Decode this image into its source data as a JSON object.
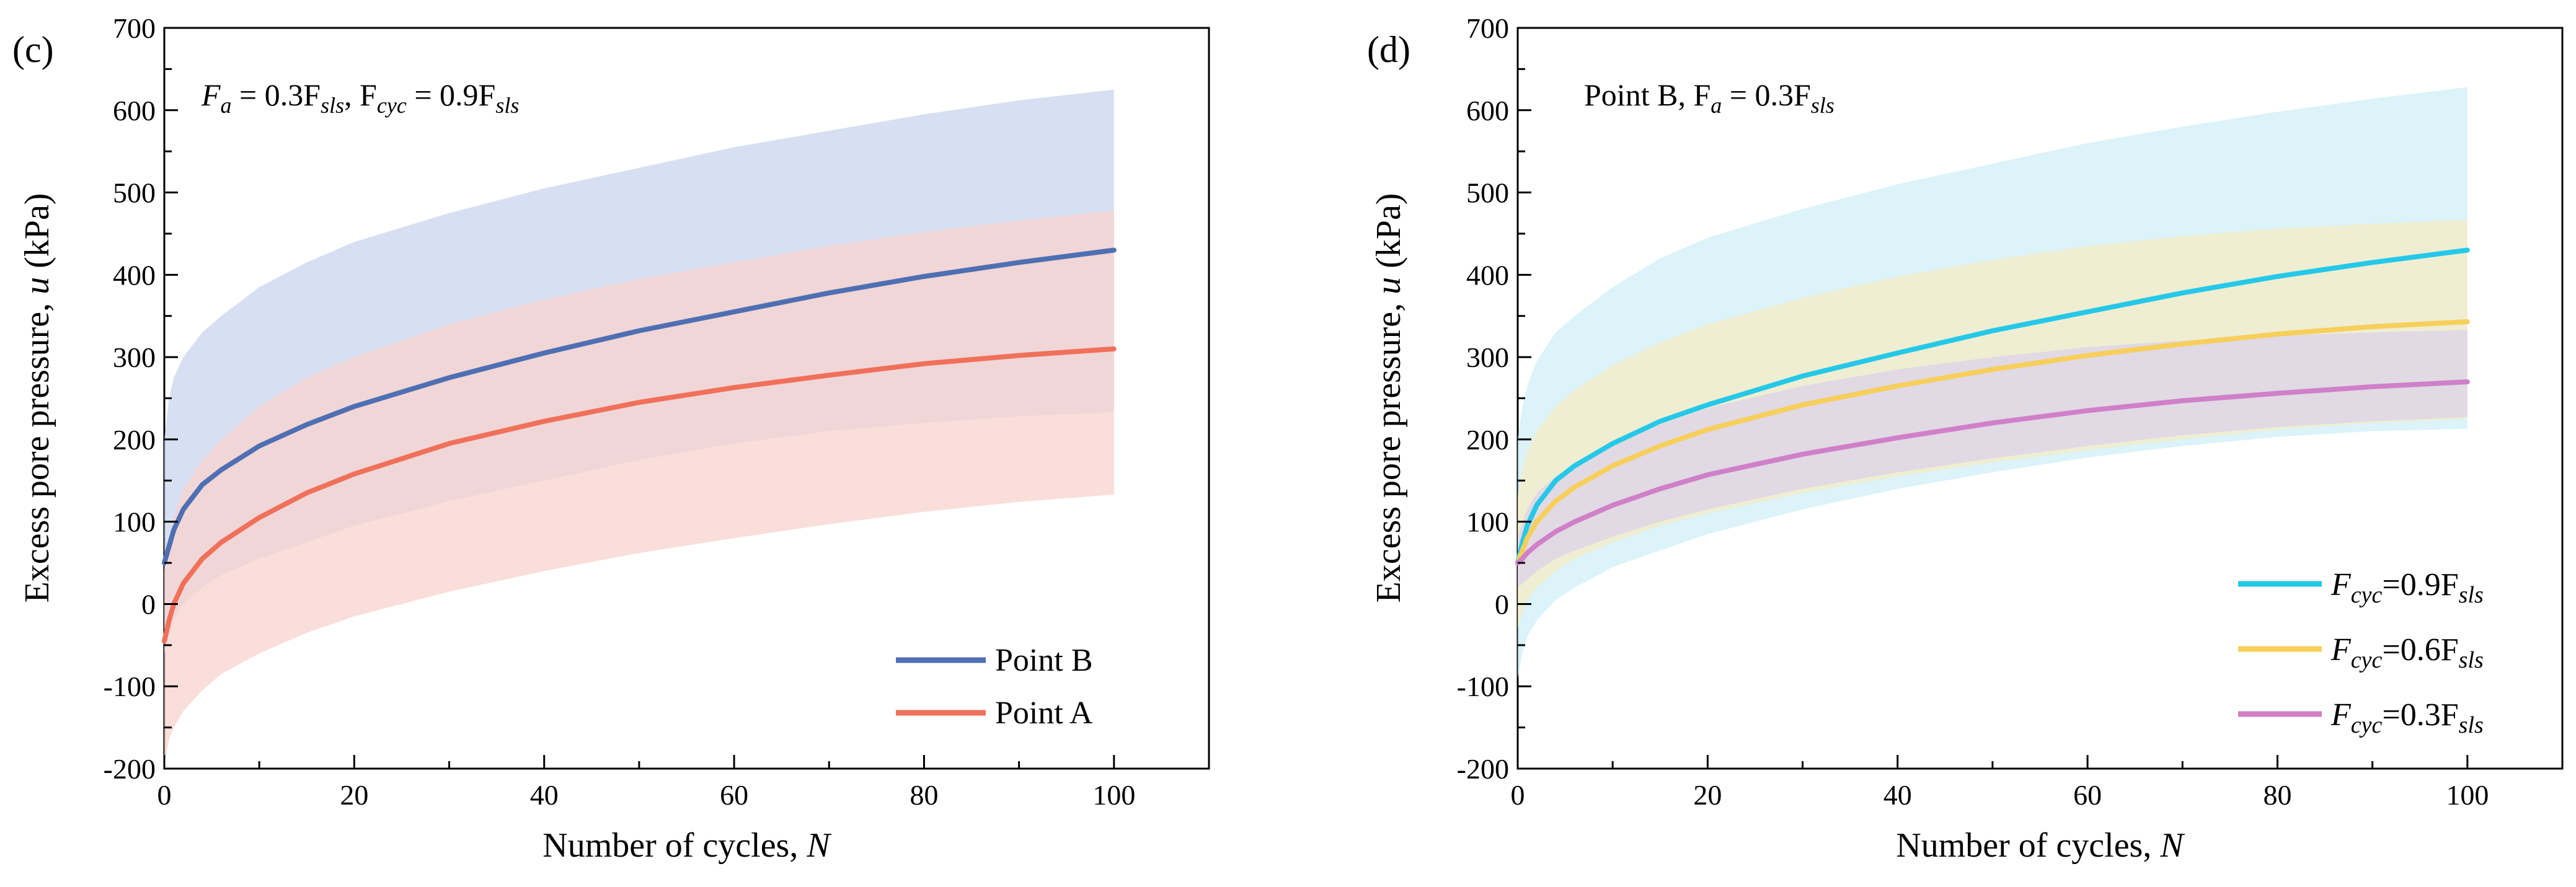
{
  "chart_data": [
    {
      "panel": "(c)",
      "type": "line",
      "annotation": {
        "pre": "F",
        "sub1": "a",
        "mid": " = 0.3F",
        "sub2": "sls",
        "sep": ",  F",
        "sub3": "cyc",
        "mid2": " = 0.9F",
        "sub4": "sls"
      },
      "xlabel": {
        "text": "Number of cycles, ",
        "var": "N"
      },
      "ylabel": {
        "text": "Excess pore pressure, ",
        "var": "u",
        "unit": " (kPa)"
      },
      "xlim": [
        0,
        110
      ],
      "ylim": [
        -200,
        700
      ],
      "xticks": [
        "0",
        "20",
        "40",
        "60",
        "80",
        "100"
      ],
      "yticks": [
        "-200",
        "-100",
        "0",
        "100",
        "200",
        "300",
        "400",
        "500",
        "600",
        "700"
      ],
      "legend_position": "bottom-right",
      "x": [
        0,
        0.5,
        1,
        2,
        4,
        6,
        10,
        15,
        20,
        30,
        40,
        50,
        60,
        70,
        80,
        90,
        100
      ],
      "series": [
        {
          "name": "Point B",
          "color": "#4f6fb3",
          "band_color": "#c9d6ee",
          "values": [
            50,
            70,
            90,
            115,
            145,
            163,
            192,
            218,
            240,
            275,
            305,
            332,
            355,
            378,
            398,
            415,
            430
          ],
          "upper": [
            200,
            250,
            275,
            300,
            330,
            350,
            385,
            415,
            440,
            475,
            505,
            530,
            555,
            575,
            595,
            612,
            625
          ],
          "lower": [
            -60,
            -40,
            -20,
            0,
            20,
            35,
            55,
            75,
            95,
            125,
            150,
            175,
            195,
            210,
            220,
            228,
            233
          ]
        },
        {
          "name": "Point A",
          "color": "#f0705a",
          "band_color": "#f8d3cd",
          "values": [
            -45,
            -20,
            0,
            25,
            55,
            75,
            105,
            135,
            158,
            195,
            222,
            245,
            263,
            278,
            292,
            302,
            310
          ],
          "upper": [
            40,
            80,
            105,
            140,
            175,
            200,
            240,
            275,
            300,
            340,
            370,
            395,
            415,
            435,
            452,
            466,
            478
          ],
          "lower": [
            -195,
            -165,
            -150,
            -130,
            -105,
            -85,
            -60,
            -35,
            -15,
            15,
            40,
            62,
            80,
            97,
            112,
            124,
            133
          ]
        }
      ]
    },
    {
      "panel": "(d)",
      "type": "line",
      "annotation": {
        "pre": "Point B, F",
        "sub1": "a",
        "mid": " = 0.3F",
        "sub2": "sls"
      },
      "xlabel": {
        "text": "Number of cycles, ",
        "var": "N"
      },
      "ylabel": {
        "text": "Excess pore pressure, ",
        "var": "u",
        "unit": " (kPa)"
      },
      "xlim": [
        0,
        110
      ],
      "ylim": [
        -200,
        700
      ],
      "xticks": [
        "0",
        "20",
        "40",
        "60",
        "80",
        "100"
      ],
      "yticks": [
        "-200",
        "-100",
        "0",
        "100",
        "200",
        "300",
        "400",
        "500",
        "600",
        "700"
      ],
      "legend_position": "bottom-right",
      "x": [
        0,
        0.5,
        1,
        2,
        4,
        6,
        10,
        15,
        20,
        30,
        40,
        50,
        60,
        70,
        80,
        90,
        100
      ],
      "series": [
        {
          "name": "F_cyc=0.9F_sls",
          "label": {
            "pre": "F",
            "sub1": "cyc",
            "mid": "=0.9F",
            "sub2": "sls"
          },
          "color": "#25c8e8",
          "band_color": "#cfeff7",
          "values": [
            50,
            75,
            95,
            120,
            150,
            168,
            195,
            222,
            242,
            277,
            305,
            332,
            355,
            378,
            398,
            415,
            430
          ],
          "upper": [
            200,
            240,
            265,
            295,
            330,
            350,
            385,
            420,
            445,
            480,
            510,
            535,
            560,
            580,
            598,
            614,
            628
          ],
          "lower": [
            -90,
            -60,
            -40,
            -20,
            5,
            20,
            45,
            65,
            85,
            115,
            140,
            160,
            178,
            192,
            203,
            210,
            213
          ]
        },
        {
          "name": "F_cyc=0.6F_sls",
          "label": {
            "pre": "F",
            "sub1": "cyc",
            "mid": "=0.6F",
            "sub2": "sls"
          },
          "color": "#f7cf5a",
          "band_color": "#f5ecc4",
          "values": [
            50,
            65,
            80,
            100,
            125,
            142,
            168,
            192,
            212,
            242,
            265,
            285,
            302,
            316,
            328,
            337,
            343
          ],
          "upper": [
            130,
            165,
            185,
            210,
            240,
            260,
            290,
            318,
            340,
            372,
            398,
            418,
            435,
            447,
            456,
            462,
            467
          ],
          "lower": [
            -30,
            -10,
            5,
            20,
            40,
            55,
            75,
            95,
            110,
            135,
            155,
            172,
            187,
            200,
            212,
            220,
            225
          ]
        },
        {
          "name": "F_cyc=0.3F_sls",
          "label": {
            "pre": "F",
            "sub1": "cyc",
            "mid": "=0.3F",
            "sub2": "sls"
          },
          "color": "#cf80c8",
          "band_color": "#dcd2e8",
          "values": [
            50,
            55,
            62,
            72,
            88,
            100,
            120,
            140,
            157,
            182,
            202,
            220,
            235,
            247,
            256,
            264,
            270
          ],
          "upper": [
            80,
            100,
            115,
            135,
            155,
            170,
            195,
            218,
            238,
            265,
            285,
            300,
            312,
            320,
            326,
            330,
            333
          ],
          "lower": [
            20,
            25,
            30,
            40,
            55,
            65,
            82,
            100,
            115,
            140,
            160,
            177,
            192,
            205,
            215,
            222,
            227
          ]
        }
      ]
    }
  ]
}
